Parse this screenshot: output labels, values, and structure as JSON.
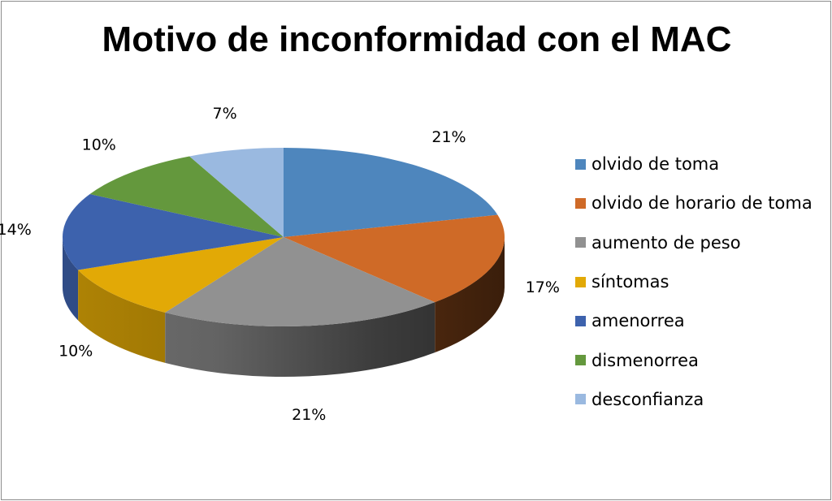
{
  "chart_data": {
    "type": "pie",
    "title": "Motivo de inconformidad con el MAC",
    "categories": [
      "olvido de toma",
      "olvido de horario de toma",
      "aumento de peso",
      "síntomas",
      "amenorrea",
      "dismenorrea",
      "desconfianza"
    ],
    "values": [
      21,
      17,
      21,
      10,
      14,
      10,
      7
    ],
    "data_labels": [
      "21%",
      "17%",
      "21%",
      "10%",
      "14%",
      "10%",
      "7%"
    ],
    "colors": [
      "#4e86bd",
      "#cf6a27",
      "#919191",
      "#e2a906",
      "#3d62ad",
      "#64983d",
      "#9ab9e0"
    ],
    "legend_position": "right",
    "style": "3d-pie"
  }
}
